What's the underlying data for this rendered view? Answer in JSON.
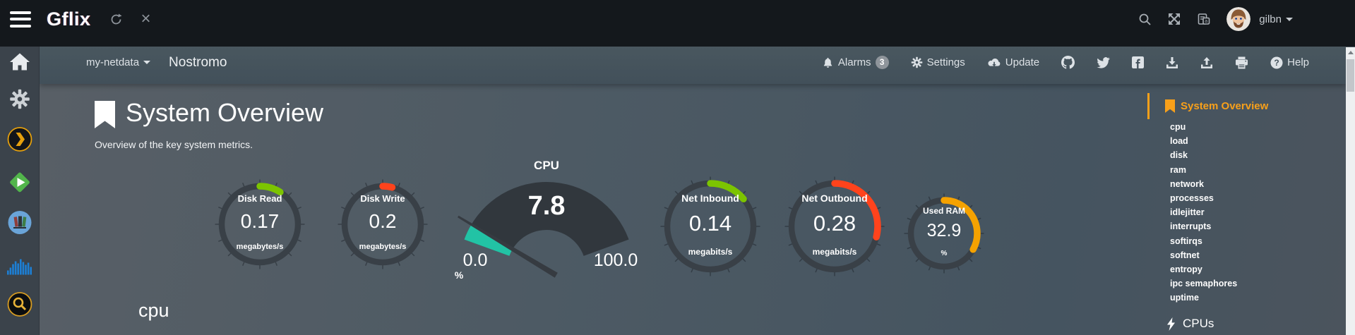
{
  "topbar": {
    "logo": "Gflix",
    "username": "gilbn"
  },
  "navbar": {
    "host_selector": "my-netdata",
    "hostname": "Nostromo",
    "alarms": "Alarms",
    "alarms_badge": "3",
    "settings": "Settings",
    "update": "Update",
    "help": "Help"
  },
  "page": {
    "title": "System Overview",
    "subtitle": "Overview of the key system metrics.",
    "section_heading": "cpu"
  },
  "chart_data": [
    {
      "type": "gauge",
      "variant": "ring",
      "title": "Disk Read",
      "value": "0.17",
      "units": "megabytes/s",
      "arc_fraction": 0.09,
      "arc_color": "#7cc400"
    },
    {
      "type": "gauge",
      "variant": "ring",
      "title": "Disk Write",
      "value": "0.2",
      "units": "megabytes/s",
      "arc_fraction": 0.04,
      "arc_color": "#ff431c"
    },
    {
      "type": "gauge",
      "variant": "meter",
      "title": "CPU",
      "value": "7.8",
      "units": "%",
      "min": 0.0,
      "max": 100.0,
      "min_label": "0.0",
      "max_label": "100.0",
      "fill_fraction": 0.078,
      "arc_color": "#22c3a5"
    },
    {
      "type": "gauge",
      "variant": "ring",
      "title": "Net Inbound",
      "value": "0.14",
      "units": "megabits/s",
      "arc_fraction": 0.14,
      "arc_color": "#7cc400"
    },
    {
      "type": "gauge",
      "variant": "ring",
      "title": "Net Outbound",
      "value": "0.28",
      "units": "megabits/s",
      "arc_fraction": 0.29,
      "arc_color": "#ff431c"
    },
    {
      "type": "gauge",
      "variant": "ring",
      "title": "Used RAM",
      "value": "32.9",
      "units": "%",
      "arc_fraction": 0.33,
      "arc_color": "#f5a201"
    }
  ],
  "right_menu": {
    "active_label": "System Overview",
    "items": [
      "cpu",
      "load",
      "disk",
      "ram",
      "network",
      "processes",
      "idlejitter",
      "interrupts",
      "softirqs",
      "softnet",
      "entropy",
      "ipc semaphores",
      "uptime"
    ],
    "next_section": "CPUs"
  },
  "icons": {
    "topbar": [
      "menu-icon",
      "refresh-icon",
      "close-icon",
      "search-icon",
      "fullscreen-icon",
      "translate-icon",
      "avatar",
      "caret-down-icon"
    ],
    "navbar": [
      "bell-icon",
      "gear-icon",
      "cloud-download-icon",
      "github-icon",
      "twitter-icon",
      "facebook-icon",
      "download-icon",
      "upload-icon",
      "print-icon",
      "question-circle-icon"
    ],
    "sidebar": [
      "home-icon",
      "gear-icon",
      "plex-icon",
      "emby-icon",
      "library-icon",
      "waveform-icon",
      "search-app-icon"
    ],
    "misc": [
      "bookmark-icon",
      "lightning-icon"
    ]
  },
  "colors": {
    "accent_orange": "#f8a01a",
    "gauge_ring": "#394047",
    "meter_body": "#31373d",
    "meter_needle": "#363b41",
    "green_arc": "#7cc400",
    "red_arc": "#ff431c",
    "orange_arc": "#f5a201",
    "teal_fill": "#22c3a5"
  }
}
